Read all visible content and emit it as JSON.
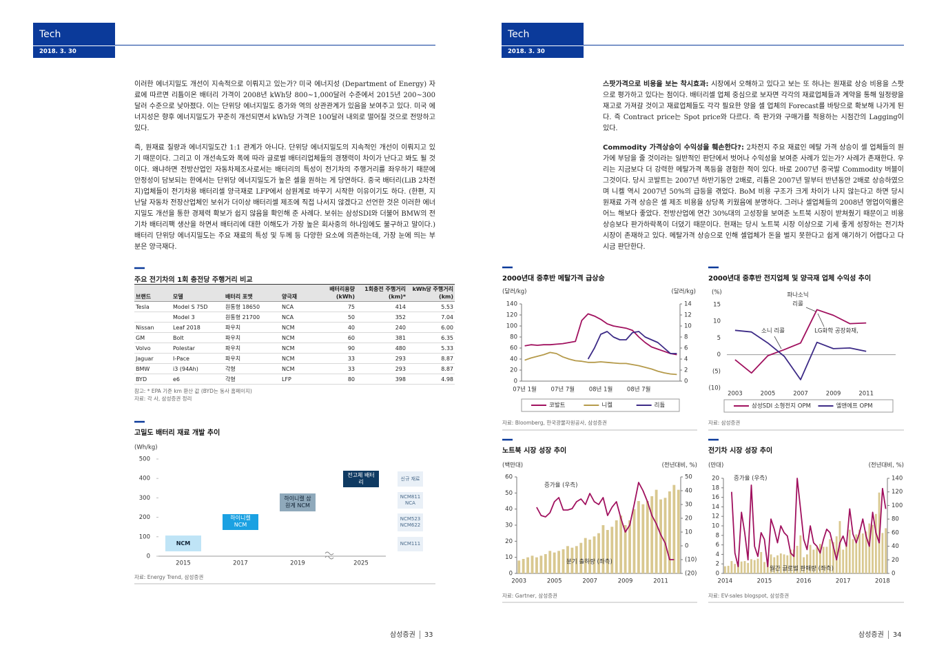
{
  "pages": [
    {
      "header": {
        "section": "Tech",
        "date": "2018. 3. 30"
      },
      "paragraphs": [
        "이러한 에너지밀도 개선이 지속적으로 이뤄지고 있는가? 미국 에너지성 (Department of Energy) 자료에 따르면 리튬이온 배터리 가격이 2008년 kWh당 800~1,000달러 수준에서 2015년 200~300달러 수준으로 낮아졌다. 이는 단위당 에너지밀도 증가와 역의 상관관계가 있음을 보여주고 있다. 미국 에너지성은 향후 에너지밀도가 꾸준히 개선되면서 kWh당 가격은 100달러 내외로 떨어질 것으로 전망하고 있다.",
        "즉, 원재료 질량과 에너지밀도간 1:1 관계가 아니다. 단위당 에너지밀도의 지속적인 개선이 이뤄지고 있기 때문이다. 그리고 이 개선속도와 폭에 따라 글로벌 배터리업체들의 경쟁력이 차이가 난다고 봐도 될 것이다. 왜냐하면 전방산업인 자동차제조사로서는 배터리의 특성이 전기차의 주행거리를 좌우하기 때문에 안정성이 담보되는 한에서는 단위당 에너지밀도가 높은 셀을 원하는 게 당연하다. 중국 배터리(LiB 2차전지)업체들이 전기차용 배터리셀 양극재로 LFP에서 삼원계로 바꾸기 시작한 이유이기도 하다. (한편, 지난달 자동차 전장산업체인 보쉬가 더이상 배터리셀 제조에 직접 나서지 않겠다고 선언한 것은 이러한 에너지밀도 개선을 통한 경제력 확보가 쉽지 않음을 확인해 준 사례다. 보쉬는 삼성SDI와 더불어 BMW의 전기차 배터리팩 생산을 하면서 배터리에 대한 이해도가 가장 높은 회사중의 하나임에도 불구하고 말이다.) 배터리 단위당 에너지밀도는 주요 재료의 특성 및 두께 등 다양한 요소에 의존하는데, 가장 눈에 띄는 부분은 양극재다."
      ],
      "table": {
        "title": "주요 전기차의 1회 충전당 주행거리 비교",
        "columns": [
          "브랜드",
          "모델",
          "배터리 포맷",
          "양극재",
          "배터리용량 (kWh)",
          "1회충전 주행거리 (km)*",
          "kWh당 주행거리 (km)"
        ],
        "rows": [
          [
            "Tesla",
            "Model S 75D",
            "원통형 18650",
            "NCA",
            75,
            414,
            5.53
          ],
          [
            null,
            "Model 3",
            "원통형 21700",
            "NCA",
            50,
            352,
            7.04
          ],
          [
            "Nissan",
            "Leaf 2018",
            "파우치",
            "NCM",
            40,
            240,
            "6.00"
          ],
          [
            "GM",
            "Bolt",
            "파우치",
            "NCM",
            60,
            381,
            6.35
          ],
          [
            "Volvo",
            "Polestar",
            "파우치",
            "NCM",
            90,
            480,
            5.33
          ],
          [
            "Jaguar",
            "I-Pace",
            "파우치",
            "NCM",
            33,
            293,
            8.87
          ],
          [
            "BMW",
            "i3 (94Ah)",
            "각형",
            "NCM",
            33,
            293,
            8.87
          ],
          [
            "BYD",
            "e6",
            "각형",
            "LFP",
            80,
            398,
            4.98
          ]
        ],
        "notes": [
          "참고: * EPA 기준 km 환산 값 (BYD는 동사 홈페이지)",
          "자료: 각 사, 삼성증권 정리"
        ]
      },
      "footer": {
        "company": "삼성증권",
        "page": 33
      }
    },
    {
      "header": {
        "section": "Tech",
        "date": "2018. 3. 30"
      },
      "paragraphs": [
        {
          "lead": "스팟가격으로 비용을 보는 착시효과:",
          "text": "시장에서 오해하고 있다고 보는 또 하나는 원재료 상승 비용을 스팟으로 평가하고 있다는 점이다. 배터리셀 업체 중심으로 보자면 각각의 재료업체들과 계약을 통해 일정량을 재고로 가져갈 것이고 재료업체들도 각각 필요한 양을 셀 업체의 Forecast를 바탕으로 확보해 나가게 된다. 즉 Contract price는 Spot price와 다르다. 즉 판가와 구매가를 적용하는 시점간의 Lagging이 있다."
        },
        {
          "lead": "Commodity 가격상승이 수익성을 훼손한다?:",
          "text": "2차전지 주요 재료인 메탈 가격 상승이 셀 업체들의 원가에 부담을 줄 것이라는 일반적인 판단에서 벗어나 수익성을 보여준 사례가 있는가? 사례가 존재한다. 우리는 지금보다 더 강력한 메탈가격 폭등을 경험한 적이 있다. 바로 2007년 중국발 Commodity 버블이 그것이다. 당시 코발트는 2007년 하반기동안 2배로, 리튬은 2007년 말부터 반년동안 2배로 상승하였으며 니켈 역시 2007년 50%의 급등을 겪었다. BoM 비용 구조가 크게 차이가 나지 않는다고 하면 당시 원재료 가격 상승은 셀 제조 비용을 상당폭 키웠음에 분명하다. 그러나 셀업체들의 2008년 영업이익률은 어느 해보다 좋았다. 전방산업에 연간 30%대의 고성장을 보여준 노트북 시장이 받쳐줬기 때문이고 비용 상승보다 판가하락폭이 더뎠기 때문이다. 현재는 당시 노트북 시장 이상으로 기세 좋게 성장하는 전기차 시장이 존재하고 있다. 메탈가격 상승으로 인해 셀업체가 돈을 벌지 못한다고 쉽게 얘기하기 어렵다고 다시금 판단한다."
        }
      ],
      "footer": {
        "company": "삼성증권",
        "page": 34
      }
    }
  ],
  "chart_data": [
    {
      "type": "range",
      "title": "고밀도 배터리 재료 개발 추이",
      "y_label": "(Wh/kg)",
      "ylim": [
        0,
        500
      ],
      "yticks": [
        0,
        100,
        200,
        300,
        400,
        500
      ],
      "categories": [
        "2015",
        "2017",
        "2019",
        "2025"
      ],
      "boxes": [
        {
          "label": "NCM",
          "low": 25,
          "high": 106,
          "color": "#bfe4f6"
        },
        {
          "label": "하이니켈 NCM",
          "low": 135,
          "high": 216,
          "color": "#1ba1e2"
        },
        {
          "label": "하이니켈 삼원계 NCM",
          "low": 230,
          "high": 323,
          "color": "#8fa9bb"
        },
        {
          "label": "전고체 배터리",
          "low": 355,
          "high": 440,
          "color": "#0f3a62"
        }
      ],
      "materials": [
        "신규 재료",
        "NCM811 NCA",
        "NCM523 NCM622",
        "NCM111"
      ],
      "source": "자료: Energy Trend, 삼성증권"
    },
    {
      "type": "line",
      "title": "2000년대 중후반 메탈가격 급상승",
      "y_label": "(달러/kg)",
      "y2_label": "(달러/kg)",
      "ylim": [
        0,
        140
      ],
      "yticks": [
        0,
        20,
        40,
        60,
        80,
        100,
        120,
        140
      ],
      "y2lim": [
        0,
        14
      ],
      "y2ticks": [
        0,
        2,
        4,
        6,
        8,
        10,
        12,
        14
      ],
      "categories": [
        "07년 1월",
        null,
        null,
        null,
        null,
        null,
        "07년 7월",
        null,
        null,
        null,
        null,
        null,
        "08년 1월",
        null,
        null,
        null,
        null,
        null,
        "08년 7월",
        null,
        null,
        null,
        null,
        null,
        null
      ],
      "series": [
        {
          "name": "코발트",
          "color": "#a0105e",
          "values": [
            64,
            66,
            65,
            66,
            66,
            67,
            68,
            70,
            72,
            110,
            122,
            118,
            112,
            104,
            100,
            98,
            96,
            92,
            80,
            70,
            62,
            58,
            54,
            50,
            48
          ]
        },
        {
          "name": "니켈",
          "color": "#b59a4a",
          "values": [
            38,
            42,
            45,
            48,
            52,
            50,
            44,
            40,
            37,
            36,
            34,
            34,
            35,
            34,
            33,
            32,
            32,
            30,
            28,
            25,
            22,
            18,
            15,
            13,
            12
          ]
        },
        {
          "name": "리튬",
          "color": "#3c2a86",
          "axis": "y2",
          "values": [
            null,
            null,
            null,
            null,
            null,
            null,
            null,
            null,
            null,
            null,
            4,
            6,
            8.5,
            9,
            8,
            7.5,
            7.5,
            8.8,
            9,
            8,
            7.5,
            7,
            6,
            5,
            5
          ]
        }
      ],
      "legend": "bottom",
      "source": "자료: Bloomberg, 한국광물자원공사, 삼성증권"
    },
    {
      "type": "line",
      "title": "2000년대 중후반 전지업체 및 양극재 업체 수익성 추이",
      "y_label": "(%)",
      "ylim": [
        -10,
        15
      ],
      "yticks": [
        {
          "value": -10,
          "label": "(10)"
        },
        {
          "value": -5,
          "label": "(5)"
        },
        0,
        5,
        10,
        15
      ],
      "x": [
        2003,
        2004,
        2005,
        2006,
        2007,
        2008,
        2009,
        2010,
        2011
      ],
      "xlim": [
        2002.5,
        2012.8
      ],
      "xticks": [
        2003,
        2005,
        2007,
        2009,
        2011
      ],
      "series": [
        {
          "name": "삼성SDI 소형전지 OPM",
          "color": "#a0105e",
          "values": [
            -1.5,
            -5.5,
            -0.3,
            1.5,
            3.5,
            13.5,
            11.8,
            9.3,
            9.5
          ]
        },
        {
          "name": "엘앤에프 OPM",
          "color": "#3c2a86",
          "values": [
            7.3,
            6.8,
            3.5,
            -0.5,
            -7.5,
            3.7,
            1.8,
            2,
            1
          ]
        }
      ],
      "annotations": [
        [
          "파나소닉",
          "리콜"
        ],
        [
          "소니 리콜"
        ],
        [
          "LG화학 공장화재,"
        ]
      ],
      "legend": "bottom",
      "source": "자료: 삼성증권"
    },
    {
      "type": "combo",
      "title": "노트북 시장 성장 추이",
      "y_label": "(백만대)",
      "y2_label": "(전년대비, %)",
      "ylim": [
        0,
        60
      ],
      "yticks": [
        0,
        10,
        20,
        30,
        40,
        50,
        60
      ],
      "y2lim": [
        -20,
        50
      ],
      "y2ticks": [
        {
          "value": -20,
          "label": "(20)"
        },
        {
          "value": -10,
          "label": "(10)"
        },
        0,
        10,
        20,
        30,
        40,
        50
      ],
      "categories": [
        "2003",
        null,
        null,
        null,
        null,
        null,
        null,
        null,
        "2005",
        null,
        null,
        null,
        null,
        null,
        null,
        null,
        "2007",
        null,
        null,
        null,
        null,
        null,
        null,
        null,
        "2009",
        null,
        null,
        null,
        null,
        null,
        null,
        null,
        "2011",
        null,
        null,
        null,
        null
      ],
      "series": [
        {
          "name": "분기 출하량 (좌측)",
          "kind": "bar",
          "color": "#d9c890",
          "values": [
            8,
            9,
            10,
            11,
            10,
            11,
            12,
            14,
            13,
            14,
            15,
            17,
            16,
            17,
            19,
            22,
            21,
            23,
            25,
            30,
            27,
            29,
            33,
            36,
            30,
            33,
            40,
            45,
            43,
            45,
            48,
            52,
            46,
            47,
            51,
            55,
            52
          ]
        },
        {
          "name": "증가율 (우측)",
          "kind": "line",
          "axis": "y2",
          "color": "#a0105e",
          "values": [
            null,
            null,
            null,
            null,
            28,
            22,
            21,
            24,
            32,
            35,
            26,
            26,
            27,
            32,
            34,
            30,
            38,
            32,
            30,
            35,
            22,
            28,
            32,
            20,
            10,
            15,
            30,
            46,
            40,
            32,
            22,
            16,
            8,
            2,
            -10,
            -10,
            null
          ]
        }
      ],
      "source": "자료: Gartner, 삼성증권"
    },
    {
      "type": "combo",
      "title": "전기차 시장 성장 추이",
      "y_label": "(만대)",
      "y2_label": "(전년대비, %)",
      "ylim": [
        0,
        20
      ],
      "yticks": [
        0,
        2,
        4,
        6,
        8,
        10,
        12,
        14,
        16,
        18,
        20
      ],
      "y2lim": [
        0,
        140
      ],
      "y2ticks": [
        0,
        20,
        40,
        60,
        80,
        100,
        120,
        140
      ],
      "categories": [
        "2014",
        null,
        null,
        null,
        null,
        null,
        null,
        null,
        null,
        null,
        null,
        null,
        "2015",
        null,
        null,
        null,
        null,
        null,
        null,
        null,
        null,
        null,
        null,
        null,
        "2016",
        null,
        null,
        null,
        null,
        null,
        null,
        null,
        null,
        null,
        null,
        null,
        "2017",
        null,
        null,
        null,
        null,
        null,
        null,
        null,
        null,
        null,
        null,
        null,
        "2018",
        null
      ],
      "series": [
        {
          "name": "월간 글로벌 판매량 (좌측)",
          "kind": "bar",
          "color": "#d9c890",
          "values": [
            1.5,
            1.6,
            2.6,
            2,
            2.3,
            2.5,
            2.6,
            2.2,
            3,
            2.8,
            3.1,
            4.5,
            2.4,
            2.8,
            4,
            3.4,
            3.8,
            4.2,
            4,
            3.8,
            5,
            5,
            5.8,
            8,
            3.4,
            4,
            6,
            5,
            5.5,
            6.2,
            5.6,
            5.6,
            7.2,
            6.6,
            7.8,
            11,
            5,
            6.2,
            9.2,
            7.2,
            8.2,
            9.2,
            8.4,
            8.8,
            10.5,
            10.2,
            12.5,
            17,
            8.5,
            9.5
          ]
        },
        {
          "name": "증가율 (우측)",
          "kind": "line",
          "axis": "y2",
          "color": "#a0105e",
          "values": [
            null,
            null,
            120,
            30,
            10,
            90,
            60,
            20,
            130,
            40,
            25,
            60,
            50,
            10,
            80,
            65,
            45,
            70,
            60,
            55,
            30,
            25,
            140,
            95,
            50,
            35,
            70,
            45,
            40,
            30,
            50,
            65,
            60,
            40,
            20,
            45,
            55,
            40,
            95,
            58,
            45,
            60,
            80,
            55,
            40,
            90,
            60,
            45,
            125,
            95
          ]
        }
      ],
      "source": "자료: EV-sales blogspot, 삼성증권"
    }
  ]
}
